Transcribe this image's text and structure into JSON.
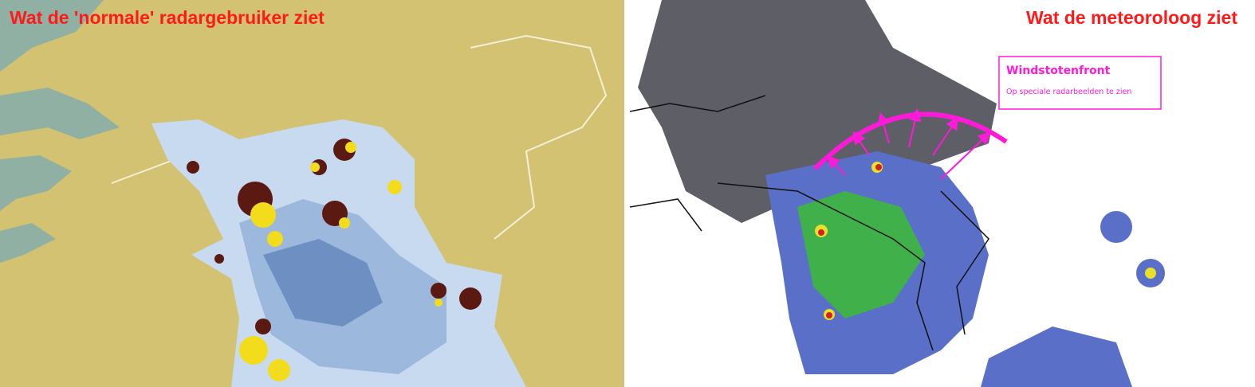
{
  "left": {
    "title": "Wat de 'normale' radargebruiker ziet"
  },
  "right": {
    "title": "Wat de meteoroloog ziet",
    "annotation": {
      "title": "Windstotenfront",
      "subtitle": "Op speciale radarbeelden te zien"
    }
  }
}
